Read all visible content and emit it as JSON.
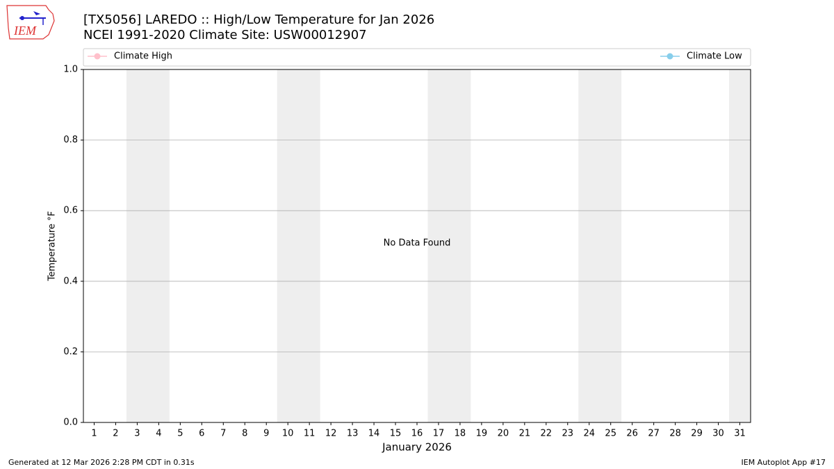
{
  "logo_text": "IEM",
  "chart_data": {
    "type": "line",
    "title": "[TX5056] LAREDO :: High/Low Temperature for Jan 2026",
    "subtitle": "NCEI 1991-2020 Climate Site: USW00012907",
    "x_label": "January 2026",
    "y_label": "Temperature °F",
    "annotation": "No Data Found",
    "x": [],
    "series": [
      {
        "name": "Climate High",
        "color": "#ffc0cb",
        "values": []
      },
      {
        "name": "Climate Low",
        "color": "#87ceeb",
        "values": []
      }
    ],
    "shaded_x_ranges": [
      [
        2.5,
        4.5
      ],
      [
        9.5,
        11.5
      ],
      [
        16.5,
        18.5
      ],
      [
        23.5,
        25.5
      ],
      [
        30.5,
        31.5
      ]
    ],
    "shade_color": "#eeeeee",
    "xlim": [
      0.5,
      31.5
    ],
    "xticks": [
      1,
      2,
      3,
      4,
      5,
      6,
      7,
      8,
      9,
      10,
      11,
      12,
      13,
      14,
      15,
      16,
      17,
      18,
      19,
      20,
      21,
      22,
      23,
      24,
      25,
      26,
      27,
      28,
      29,
      30,
      31
    ],
    "ylim": [
      0,
      1
    ],
    "yticks": [
      {
        "value": 0,
        "label": "0.0"
      },
      0.2,
      0.4,
      0.6,
      0.8,
      {
        "value": 1,
        "label": "1.0"
      }
    ],
    "grid": true,
    "legend": "top",
    "footer_left": "Generated at 12 Mar 2026 2:28 PM CDT in 0.31s",
    "footer_right": "IEM Autoplot App #17"
  }
}
